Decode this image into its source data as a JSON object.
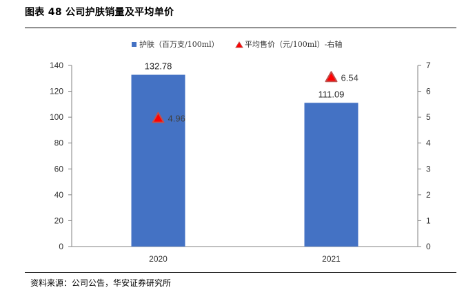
{
  "figure_title": "图表 48  公司护肤销量及平均单价",
  "source_note": "资料来源：公司公告，华安证券研究所",
  "chart_data": {
    "type": "bar",
    "categories": [
      "2020",
      "2021"
    ],
    "series": [
      {
        "name": "护肤（百万支/100ml）",
        "type": "bar",
        "axis": "left",
        "color": "#4472C4",
        "values": [
          132.78,
          111.09
        ],
        "labels": [
          "132.78",
          "111.09"
        ]
      },
      {
        "name": "平均售价（元/100ml）-右轴",
        "type": "scatter",
        "axis": "right",
        "marker": "triangle",
        "marker_fill": "#FF0000",
        "marker_stroke": "#C0504D",
        "values": [
          4.96,
          6.54
        ],
        "labels": [
          "4.96",
          "6.54"
        ]
      }
    ],
    "y_left": {
      "min": 0,
      "max": 140,
      "ticks": [
        "0",
        "20",
        "40",
        "60",
        "80",
        "100",
        "120",
        "140"
      ]
    },
    "y_right": {
      "min": 0,
      "max": 7,
      "ticks": [
        "0",
        "1",
        "2",
        "3",
        "4",
        "5",
        "6",
        "7"
      ]
    },
    "legend_position": "top",
    "grid": false
  }
}
